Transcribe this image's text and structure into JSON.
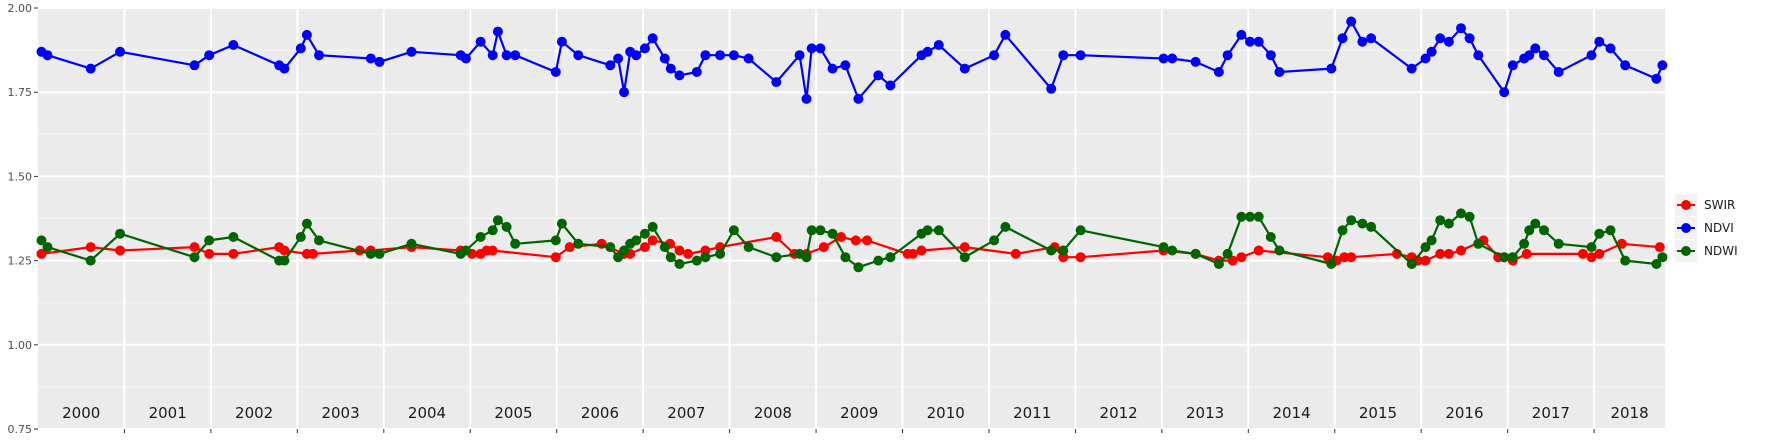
{
  "chart_data": {
    "type": "line",
    "title": "",
    "xlabel": "",
    "ylabel": "",
    "xlim": [
      2000.0,
      2018.82
    ],
    "ylim": [
      0.75,
      2.0
    ],
    "yticks": [
      "0.75",
      "1.00",
      "1.25",
      "1.50",
      "1.75",
      "2.00"
    ],
    "years": [
      "2000",
      "2001",
      "2002",
      "2003",
      "2004",
      "2005",
      "2006",
      "2007",
      "2008",
      "2009",
      "2010",
      "2011",
      "2012",
      "2013",
      "2014",
      "2015",
      "2016",
      "2017",
      "2018"
    ],
    "grid": true,
    "legend": "right",
    "series": [
      {
        "name": "SWIR",
        "color": "#ff0000",
        "points": [
          [
            2000.04,
            1.27
          ],
          [
            2000.61,
            1.29
          ],
          [
            2000.95,
            1.28
          ],
          [
            2001.81,
            1.29
          ],
          [
            2001.98,
            1.27
          ],
          [
            2002.26,
            1.27
          ],
          [
            2002.79,
            1.29
          ],
          [
            2002.85,
            1.28
          ],
          [
            2003.11,
            1.27
          ],
          [
            2003.18,
            1.27
          ],
          [
            2003.72,
            1.28
          ],
          [
            2003.85,
            1.28
          ],
          [
            2004.32,
            1.29
          ],
          [
            2004.89,
            1.28
          ],
          [
            2005.02,
            1.27
          ],
          [
            2005.12,
            1.27
          ],
          [
            2005.19,
            1.28
          ],
          [
            2005.26,
            1.28
          ],
          [
            2005.99,
            1.26
          ],
          [
            2006.15,
            1.29
          ],
          [
            2006.52,
            1.3
          ],
          [
            2006.78,
            1.27
          ],
          [
            2006.85,
            1.27
          ],
          [
            2007.02,
            1.29
          ],
          [
            2007.11,
            1.31
          ],
          [
            2007.31,
            1.3
          ],
          [
            2007.42,
            1.28
          ],
          [
            2007.52,
            1.27
          ],
          [
            2007.72,
            1.28
          ],
          [
            2007.89,
            1.29
          ],
          [
            2008.54,
            1.32
          ],
          [
            2008.75,
            1.27
          ],
          [
            2008.89,
            1.27
          ],
          [
            2009.09,
            1.29
          ],
          [
            2009.29,
            1.32
          ],
          [
            2009.46,
            1.31
          ],
          [
            2009.59,
            1.31
          ],
          [
            2010.06,
            1.27
          ],
          [
            2010.12,
            1.27
          ],
          [
            2010.22,
            1.28
          ],
          [
            2010.72,
            1.29
          ],
          [
            2011.31,
            1.27
          ],
          [
            2011.76,
            1.29
          ],
          [
            2011.86,
            1.26
          ],
          [
            2012.06,
            1.26
          ],
          [
            2013.02,
            1.28
          ],
          [
            2013.39,
            1.27
          ],
          [
            2013.66,
            1.25
          ],
          [
            2013.82,
            1.25
          ],
          [
            2013.92,
            1.26
          ],
          [
            2014.12,
            1.28
          ],
          [
            2014.92,
            1.26
          ],
          [
            2015.02,
            1.25
          ],
          [
            2015.11,
            1.26
          ],
          [
            2015.19,
            1.26
          ],
          [
            2015.72,
            1.27
          ],
          [
            2015.89,
            1.26
          ],
          [
            2015.96,
            1.25
          ],
          [
            2016.05,
            1.25
          ],
          [
            2016.22,
            1.27
          ],
          [
            2016.32,
            1.27
          ],
          [
            2016.46,
            1.28
          ],
          [
            2016.72,
            1.31
          ],
          [
            2016.89,
            1.26
          ],
          [
            2016.96,
            1.26
          ],
          [
            2017.06,
            1.25
          ],
          [
            2017.22,
            1.27
          ],
          [
            2017.87,
            1.27
          ],
          [
            2017.97,
            1.26
          ],
          [
            2018.06,
            1.27
          ],
          [
            2018.32,
            1.3
          ],
          [
            2018.76,
            1.29
          ]
        ]
      },
      {
        "name": "NDVI",
        "color": "#0000ff",
        "points": [
          [
            2000.04,
            1.87
          ],
          [
            2000.11,
            1.86
          ],
          [
            2000.61,
            1.82
          ],
          [
            2000.95,
            1.87
          ],
          [
            2001.81,
            1.83
          ],
          [
            2001.98,
            1.86
          ],
          [
            2002.26,
            1.89
          ],
          [
            2002.79,
            1.83
          ],
          [
            2002.85,
            1.82
          ],
          [
            2003.04,
            1.88
          ],
          [
            2003.11,
            1.92
          ],
          [
            2003.25,
            1.86
          ],
          [
            2003.85,
            1.85
          ],
          [
            2003.95,
            1.84
          ],
          [
            2004.32,
            1.87
          ],
          [
            2004.89,
            1.86
          ],
          [
            2004.95,
            1.85
          ],
          [
            2005.12,
            1.9
          ],
          [
            2005.26,
            1.86
          ],
          [
            2005.32,
            1.93
          ],
          [
            2005.42,
            1.86
          ],
          [
            2005.52,
            1.86
          ],
          [
            2005.99,
            1.81
          ],
          [
            2006.06,
            1.9
          ],
          [
            2006.25,
            1.86
          ],
          [
            2006.62,
            1.83
          ],
          [
            2006.71,
            1.85
          ],
          [
            2006.78,
            1.75
          ],
          [
            2006.85,
            1.87
          ],
          [
            2006.92,
            1.86
          ],
          [
            2007.02,
            1.88
          ],
          [
            2007.11,
            1.91
          ],
          [
            2007.25,
            1.85
          ],
          [
            2007.32,
            1.82
          ],
          [
            2007.42,
            1.8
          ],
          [
            2007.62,
            1.81
          ],
          [
            2007.72,
            1.86
          ],
          [
            2007.89,
            1.86
          ],
          [
            2008.05,
            1.86
          ],
          [
            2008.22,
            1.85
          ],
          [
            2008.54,
            1.78
          ],
          [
            2008.81,
            1.86
          ],
          [
            2008.89,
            1.73
          ],
          [
            2008.95,
            1.88
          ],
          [
            2009.05,
            1.88
          ],
          [
            2009.19,
            1.82
          ],
          [
            2009.34,
            1.83
          ],
          [
            2009.49,
            1.73
          ],
          [
            2009.72,
            1.8
          ],
          [
            2009.86,
            1.77
          ],
          [
            2010.22,
            1.86
          ],
          [
            2010.29,
            1.87
          ],
          [
            2010.42,
            1.89
          ],
          [
            2010.72,
            1.82
          ],
          [
            2011.06,
            1.86
          ],
          [
            2011.19,
            1.92
          ],
          [
            2011.72,
            1.76
          ],
          [
            2011.86,
            1.86
          ],
          [
            2012.06,
            1.86
          ],
          [
            2013.02,
            1.85
          ],
          [
            2013.12,
            1.85
          ],
          [
            2013.39,
            1.84
          ],
          [
            2013.66,
            1.81
          ],
          [
            2013.76,
            1.86
          ],
          [
            2013.92,
            1.92
          ],
          [
            2014.02,
            1.9
          ],
          [
            2014.12,
            1.9
          ],
          [
            2014.26,
            1.86
          ],
          [
            2014.36,
            1.81
          ],
          [
            2014.96,
            1.82
          ],
          [
            2015.09,
            1.91
          ],
          [
            2015.19,
            1.96
          ],
          [
            2015.32,
            1.9
          ],
          [
            2015.42,
            1.91
          ],
          [
            2015.89,
            1.82
          ],
          [
            2016.05,
            1.85
          ],
          [
            2016.12,
            1.87
          ],
          [
            2016.22,
            1.91
          ],
          [
            2016.32,
            1.9
          ],
          [
            2016.46,
            1.94
          ],
          [
            2016.56,
            1.91
          ],
          [
            2016.66,
            1.86
          ],
          [
            2016.96,
            1.75
          ],
          [
            2017.06,
            1.83
          ],
          [
            2017.19,
            1.85
          ],
          [
            2017.25,
            1.86
          ],
          [
            2017.32,
            1.88
          ],
          [
            2017.42,
            1.86
          ],
          [
            2017.59,
            1.81
          ],
          [
            2017.97,
            1.86
          ],
          [
            2018.06,
            1.9
          ],
          [
            2018.19,
            1.88
          ],
          [
            2018.36,
            1.83
          ],
          [
            2018.72,
            1.79
          ],
          [
            2018.79,
            1.83
          ]
        ]
      },
      {
        "name": "NDWI",
        "color": "#006400",
        "points": [
          [
            2000.04,
            1.31
          ],
          [
            2000.11,
            1.29
          ],
          [
            2000.61,
            1.25
          ],
          [
            2000.95,
            1.33
          ],
          [
            2001.81,
            1.26
          ],
          [
            2001.98,
            1.31
          ],
          [
            2002.26,
            1.32
          ],
          [
            2002.79,
            1.25
          ],
          [
            2002.85,
            1.25
          ],
          [
            2003.04,
            1.32
          ],
          [
            2003.11,
            1.36
          ],
          [
            2003.25,
            1.31
          ],
          [
            2003.85,
            1.27
          ],
          [
            2003.95,
            1.27
          ],
          [
            2004.32,
            1.3
          ],
          [
            2004.89,
            1.27
          ],
          [
            2004.95,
            1.28
          ],
          [
            2005.12,
            1.32
          ],
          [
            2005.26,
            1.34
          ],
          [
            2005.32,
            1.37
          ],
          [
            2005.42,
            1.35
          ],
          [
            2005.52,
            1.3
          ],
          [
            2005.99,
            1.31
          ],
          [
            2006.06,
            1.36
          ],
          [
            2006.25,
            1.3
          ],
          [
            2006.62,
            1.29
          ],
          [
            2006.71,
            1.26
          ],
          [
            2006.78,
            1.28
          ],
          [
            2006.85,
            1.3
          ],
          [
            2006.92,
            1.31
          ],
          [
            2007.02,
            1.33
          ],
          [
            2007.11,
            1.35
          ],
          [
            2007.25,
            1.29
          ],
          [
            2007.32,
            1.26
          ],
          [
            2007.42,
            1.24
          ],
          [
            2007.62,
            1.25
          ],
          [
            2007.72,
            1.26
          ],
          [
            2007.89,
            1.27
          ],
          [
            2008.05,
            1.34
          ],
          [
            2008.22,
            1.29
          ],
          [
            2008.54,
            1.26
          ],
          [
            2008.81,
            1.27
          ],
          [
            2008.89,
            1.26
          ],
          [
            2008.95,
            1.34
          ],
          [
            2009.05,
            1.34
          ],
          [
            2009.19,
            1.33
          ],
          [
            2009.34,
            1.26
          ],
          [
            2009.49,
            1.23
          ],
          [
            2009.72,
            1.25
          ],
          [
            2009.86,
            1.26
          ],
          [
            2010.22,
            1.33
          ],
          [
            2010.29,
            1.34
          ],
          [
            2010.42,
            1.34
          ],
          [
            2010.72,
            1.26
          ],
          [
            2011.06,
            1.31
          ],
          [
            2011.19,
            1.35
          ],
          [
            2011.72,
            1.28
          ],
          [
            2011.86,
            1.28
          ],
          [
            2012.06,
            1.34
          ],
          [
            2013.02,
            1.29
          ],
          [
            2013.12,
            1.28
          ],
          [
            2013.39,
            1.27
          ],
          [
            2013.66,
            1.24
          ],
          [
            2013.76,
            1.27
          ],
          [
            2013.92,
            1.38
          ],
          [
            2014.02,
            1.38
          ],
          [
            2014.12,
            1.38
          ],
          [
            2014.26,
            1.32
          ],
          [
            2014.36,
            1.28
          ],
          [
            2014.96,
            1.24
          ],
          [
            2015.09,
            1.34
          ],
          [
            2015.19,
            1.37
          ],
          [
            2015.32,
            1.36
          ],
          [
            2015.42,
            1.35
          ],
          [
            2015.89,
            1.24
          ],
          [
            2016.05,
            1.29
          ],
          [
            2016.12,
            1.31
          ],
          [
            2016.22,
            1.37
          ],
          [
            2016.32,
            1.36
          ],
          [
            2016.46,
            1.39
          ],
          [
            2016.56,
            1.38
          ],
          [
            2016.66,
            1.3
          ],
          [
            2016.96,
            1.26
          ],
          [
            2017.06,
            1.26
          ],
          [
            2017.19,
            1.3
          ],
          [
            2017.25,
            1.34
          ],
          [
            2017.32,
            1.36
          ],
          [
            2017.42,
            1.34
          ],
          [
            2017.59,
            1.3
          ],
          [
            2017.97,
            1.29
          ],
          [
            2018.06,
            1.33
          ],
          [
            2018.19,
            1.34
          ],
          [
            2018.36,
            1.25
          ],
          [
            2018.72,
            1.24
          ],
          [
            2018.79,
            1.26
          ]
        ]
      }
    ]
  }
}
